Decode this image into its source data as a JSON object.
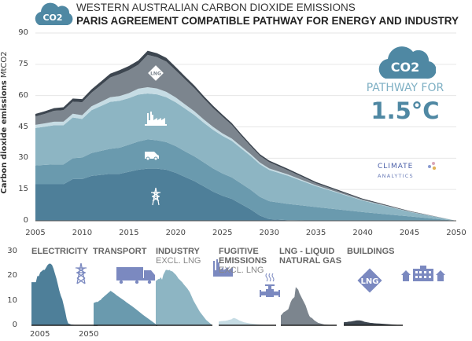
{
  "header": {
    "badge": "CO2",
    "title": "WESTERN AUSTRALIAN CARBON DIOXIDE EMISSIONS",
    "subtitle": "PARIS AGREEMENT COMPATIBLE PATHWAY FOR ENERGY AND INDUSTRY"
  },
  "side": {
    "badge": "CO2",
    "pathway_label": "PATHWAY FOR",
    "target": "1.5°C",
    "logo_line1": "CLIMATE",
    "logo_line2": "ANALYTICS"
  },
  "colors": {
    "electricity": "#4e7f99",
    "transport": "#6a9aae",
    "industry": "#8db5c3",
    "fugitive": "#c6dce4",
    "lng": "#7c858e",
    "buildings": "#3d4650",
    "icon": "#7b89c0",
    "accent": "#4f88a3"
  },
  "chart_data": {
    "type": "area",
    "stacked": true,
    "ylabel_bold": "Carbon dioxide emissions",
    "ylabel_unit": "MtCO2",
    "ylim": [
      0,
      90
    ],
    "xlim": [
      2005,
      2050
    ],
    "yticks": [
      0,
      15,
      30,
      45,
      60,
      75,
      90
    ],
    "xticks": [
      2005,
      2010,
      2015,
      2020,
      2025,
      2030,
      2035,
      2040,
      2045,
      2050
    ],
    "grid": true,
    "x": [
      2005,
      2006,
      2007,
      2008,
      2009,
      2010,
      2011,
      2012,
      2013,
      2014,
      2015,
      2016,
      2017,
      2018,
      2019,
      2020,
      2021,
      2022,
      2023,
      2024,
      2025,
      2026,
      2027,
      2028,
      2029,
      2030,
      2032,
      2035,
      2040,
      2045,
      2050
    ],
    "series": [
      {
        "key": "electricity",
        "name": "ELECTRICITY",
        "icon": "pylon-icon",
        "values": [
          17.5,
          17.5,
          17.5,
          17.5,
          20,
          20,
          21.5,
          22,
          22.5,
          22.5,
          23.5,
          24.5,
          25,
          25,
          24.5,
          23,
          21,
          19,
          16.5,
          14,
          12,
          10.5,
          8,
          5.5,
          2.5,
          0.8,
          0.3,
          0.1,
          0,
          0,
          0
        ]
      },
      {
        "key": "transport",
        "name": "TRANSPORT",
        "icon": "truck-icon",
        "values": [
          9,
          9.3,
          9.5,
          9.5,
          10,
          10.3,
          11,
          11.5,
          12,
          12.5,
          13,
          13.5,
          14,
          13.6,
          13.2,
          12.8,
          12.3,
          11.9,
          11.5,
          11.1,
          10.7,
          10.3,
          9.9,
          9.4,
          9,
          8.6,
          7.8,
          6.5,
          4.2,
          2.1,
          0
        ]
      },
      {
        "key": "industry",
        "name": "INDUSTRY",
        "sub": "EXCL. LNG",
        "icon": "factory-icon",
        "values": [
          18,
          18.3,
          18.8,
          18.8,
          19.5,
          18.5,
          20.5,
          21.5,
          22.5,
          22.5,
          22.3,
          22.5,
          22,
          22,
          21.5,
          21,
          20.5,
          19.8,
          19,
          18.5,
          18,
          17.5,
          16.8,
          16.2,
          15.6,
          15,
          13.5,
          10,
          5.5,
          2.2,
          0
        ]
      },
      {
        "key": "fugitive",
        "name": "FUGITIVE EMISSIONS",
        "sub": "EXCL. LNG",
        "icon": "valve-icon",
        "values": [
          1.5,
          1.6,
          1.7,
          1.7,
          1.8,
          1.8,
          1.9,
          2,
          2.2,
          2.3,
          2.4,
          2.8,
          3,
          2.8,
          2.6,
          2.3,
          2,
          1.8,
          1.6,
          1.4,
          1.2,
          1.1,
          1,
          0.9,
          0.8,
          0.7,
          0.6,
          0.4,
          0.2,
          0.1,
          0
        ]
      },
      {
        "key": "lng",
        "name": "LNG - LIQUID NATURAL GAS",
        "icon": "lng-diamond-icon",
        "values": [
          4,
          4.5,
          5.2,
          5.5,
          5.8,
          6.2,
          6.5,
          8,
          9.5,
          10.5,
          11,
          11.5,
          15.5,
          15,
          14.5,
          13,
          12,
          11,
          10,
          9,
          8,
          6.5,
          5,
          3.8,
          3.2,
          3,
          2,
          1,
          0.3,
          0.1,
          0
        ]
      },
      {
        "key": "buildings",
        "name": "BUILDINGS",
        "icon": "buildings-icon",
        "values": [
          1.2,
          1.3,
          1.3,
          1.4,
          1.5,
          1.5,
          1.6,
          1.7,
          1.8,
          1.9,
          2,
          2,
          2,
          1.9,
          1.8,
          1.6,
          1.4,
          1.3,
          1.2,
          1.1,
          1,
          0.95,
          0.9,
          0.85,
          0.8,
          0.75,
          0.7,
          0.6,
          0.4,
          0.2,
          0
        ]
      }
    ],
    "small_multiples": {
      "yticks": [
        0,
        10,
        20,
        30
      ],
      "ylim": [
        0,
        30
      ],
      "xticks": [
        2005,
        2050
      ]
    }
  }
}
